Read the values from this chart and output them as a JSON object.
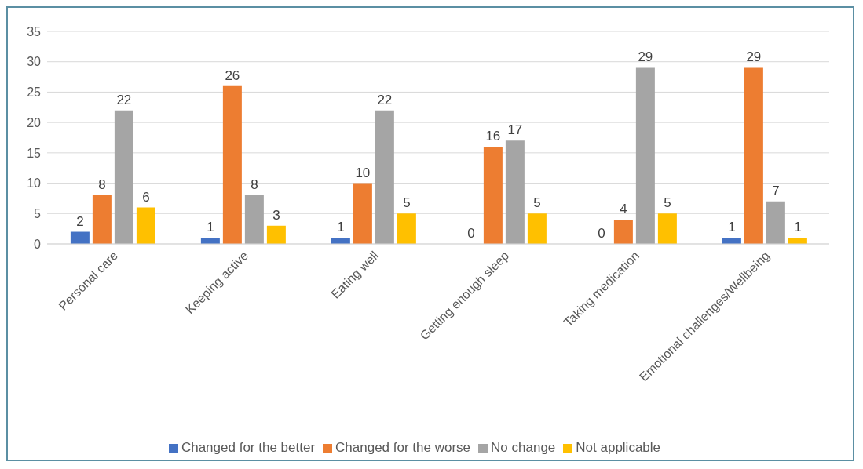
{
  "chart_data": {
    "type": "bar",
    "categories": [
      "Personal care",
      "Keeping active",
      "Eating well",
      "Getting enough sleep",
      "Taking medication",
      "Emotional challenges/Wellbeing"
    ],
    "series": [
      {
        "name": "Changed for the better",
        "color": "#4472c4",
        "values": [
          2,
          1,
          1,
          0,
          0,
          1
        ]
      },
      {
        "name": "Changed for the worse",
        "color": "#ed7d31",
        "values": [
          8,
          26,
          10,
          16,
          4,
          29
        ]
      },
      {
        "name": "No change",
        "color": "#a5a5a5",
        "values": [
          22,
          8,
          22,
          17,
          29,
          7
        ]
      },
      {
        "name": "Not applicable",
        "color": "#ffc000",
        "values": [
          6,
          3,
          5,
          5,
          5,
          1
        ]
      }
    ],
    "ylim": [
      0,
      35
    ],
    "yticks": [
      0,
      5,
      10,
      15,
      20,
      25,
      30,
      35
    ],
    "grid": "y",
    "legend": "bottom",
    "data_labels": true
  }
}
